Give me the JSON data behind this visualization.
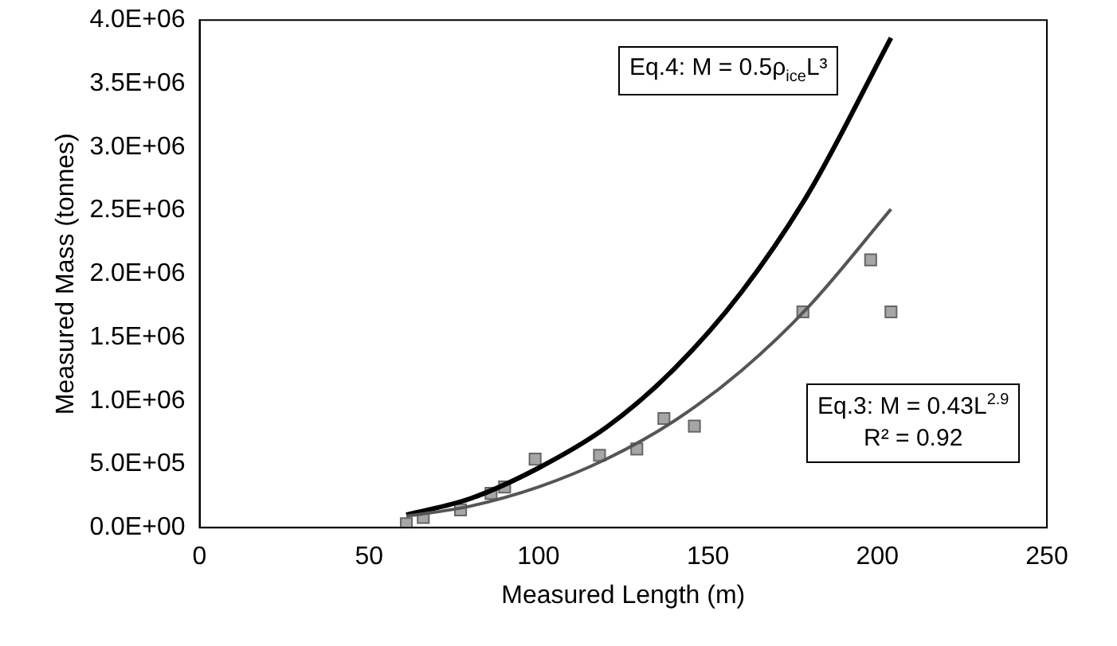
{
  "chart_data": {
    "type": "scatter",
    "xlabel": "Measured Length (m)",
    "ylabel": "Measured Mass (tonnes)",
    "xlim": [
      0,
      250
    ],
    "xticks": [
      0,
      50,
      100,
      150,
      200,
      250
    ],
    "ylim": [
      0,
      4000000
    ],
    "yticks": [
      {
        "value": 0,
        "label": "0.0E+00"
      },
      {
        "value": 500000,
        "label": "5.0E+05"
      },
      {
        "value": 1000000,
        "label": "1.0E+06"
      },
      {
        "value": 1500000,
        "label": "1.5E+06"
      },
      {
        "value": 2000000,
        "label": "2.0E+06"
      },
      {
        "value": 2500000,
        "label": "2.5E+06"
      },
      {
        "value": 3000000,
        "label": "3.0E+06"
      },
      {
        "value": 3500000,
        "label": "3.5E+06"
      },
      {
        "value": 4000000,
        "label": "4.0E+06"
      }
    ],
    "grid": false,
    "legend": false,
    "series": [
      {
        "type": "scatter",
        "marker": "square",
        "color": "#a6a6a6",
        "x": [
          61,
          66,
          77,
          86,
          90,
          99,
          118,
          129,
          137,
          146,
          178,
          198,
          204
        ],
        "values": [
          30000,
          80000,
          140000,
          270000,
          320000,
          540000,
          570000,
          620000,
          860000,
          800000,
          1700000,
          2110000,
          1700000
        ]
      },
      {
        "type": "line",
        "marker": "none",
        "color": "#000000",
        "x": [
          61,
          80,
          100,
          120,
          140,
          160,
          180,
          204
        ],
        "values": [
          100000,
          230000,
          470000,
          790000,
          1250000,
          1860000,
          2650000,
          3860000
        ]
      },
      {
        "type": "line",
        "marker": "none",
        "color": "#555555",
        "x": [
          61,
          80,
          100,
          120,
          140,
          160,
          180,
          204
        ],
        "values": [
          90000,
          170000,
          320000,
          540000,
          840000,
          1240000,
          1750000,
          2510000
        ]
      }
    ],
    "annotations": [
      "Eq.4: M = 0.5ρ$_{ice}$L³",
      "Eq.3: M = 0.43L$^{2.9}$",
      "R² = 0.92"
    ]
  }
}
